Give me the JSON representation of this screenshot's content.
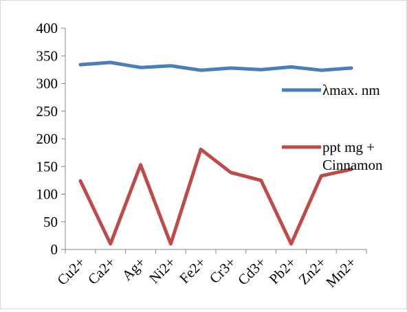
{
  "chart_data": {
    "type": "line",
    "title": "",
    "xlabel": "",
    "ylabel": "",
    "categories": [
      "Cu2+",
      "Ca2+",
      "Ag+",
      "Ni2+",
      "Fe2+",
      "Cr3+",
      "Cd3+",
      "Pb2+",
      "Zn2+",
      "Mn2+"
    ],
    "ylim": [
      0,
      400
    ],
    "yticks": [
      0,
      50,
      100,
      150,
      200,
      250,
      300,
      350,
      400
    ],
    "grid": false,
    "legend_position": "right",
    "series": [
      {
        "name": "λmax. nm",
        "color": "#4a7ebb",
        "values": [
          334,
          338,
          329,
          332,
          324,
          328,
          325,
          330,
          324,
          328
        ]
      },
      {
        "name": "ppt mg + Cinnamon",
        "color": "#be4b48",
        "values": [
          124,
          10,
          153,
          10,
          181,
          139,
          125,
          10,
          133,
          145
        ]
      }
    ]
  }
}
